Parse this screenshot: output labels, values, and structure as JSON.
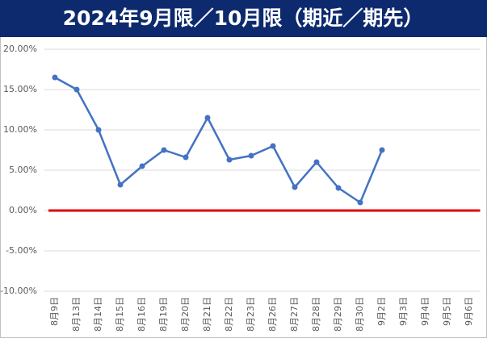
{
  "chart_data": {
    "type": "line",
    "title": "2024年9月限／10月限（期近／期先）",
    "categories": [
      "8月9日",
      "8月13日",
      "8月14日",
      "8月15日",
      "8月16日",
      "8月19日",
      "8月20日",
      "8月21日",
      "8月22日",
      "8月23日",
      "8月26日",
      "8月27日",
      "8月28日",
      "8月29日",
      "8月30日",
      "9月2日",
      "9月3日",
      "9月4日",
      "9月5日",
      "9月6日"
    ],
    "series": [
      {
        "color": "#4472c4",
        "values": [
          16.5,
          15.0,
          10.0,
          3.2,
          5.5,
          7.5,
          6.6,
          11.5,
          6.3,
          6.8,
          8.0,
          2.9,
          6.0,
          2.8,
          1.0,
          7.5,
          null,
          null,
          null,
          null
        ]
      }
    ],
    "ylim": [
      -10,
      20
    ],
    "yticks": [
      {
        "value": -10,
        "label": "-10.00%"
      },
      {
        "value": -5,
        "label": "-5.00%"
      },
      {
        "value": 0,
        "label": "0.00%"
      },
      {
        "value": 5,
        "label": "5.00%"
      },
      {
        "value": 10,
        "label": "10.00%"
      },
      {
        "value": 15,
        "label": "15.00%"
      },
      {
        "value": 20,
        "label": "20.00%"
      }
    ],
    "grid": true,
    "zero_line_color": "#e00000"
  }
}
